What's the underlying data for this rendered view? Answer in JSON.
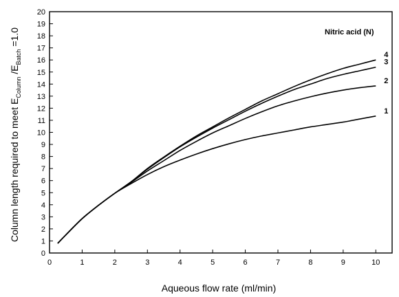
{
  "chart_data": {
    "type": "line",
    "xlabel": "Aqueous flow rate (ml/min)",
    "ylabel": {
      "main": "Column length required to meet E",
      "sub1": "Column",
      "mid": " /E",
      "sub2": "Batch",
      "end": " =1.0"
    },
    "legend_title": "Nitric acid  (N)",
    "xlim": [
      0,
      10.5
    ],
    "ylim": [
      0,
      20
    ],
    "x_ticks": [
      "0",
      "1",
      "2",
      "3",
      "4",
      "5",
      "6",
      "7",
      "8",
      "9",
      "10"
    ],
    "y_ticks": [
      "0",
      "1",
      "2",
      "3",
      "4",
      "5",
      "6",
      "7",
      "8",
      "9",
      "10",
      "11",
      "12",
      "13",
      "14",
      "15",
      "16",
      "17",
      "18",
      "19",
      "20"
    ],
    "grid": false,
    "series": [
      {
        "name": "1",
        "x": [
          0.25,
          0.5,
          1,
          1.5,
          2,
          2.5,
          3,
          3.5,
          4,
          4.5,
          5,
          5.5,
          6,
          6.5,
          7,
          7.5,
          8,
          8.5,
          9,
          9.5,
          10
        ],
        "y": [
          0.8,
          1.5,
          2.85,
          3.95,
          4.95,
          5.75,
          6.5,
          7.15,
          7.7,
          8.2,
          8.65,
          9.05,
          9.4,
          9.7,
          9.95,
          10.2,
          10.45,
          10.65,
          10.85,
          11.1,
          11.35
        ]
      },
      {
        "name": "2",
        "x": [
          0.25,
          0.5,
          1,
          1.5,
          2,
          2.5,
          3,
          3.5,
          4,
          4.5,
          5,
          5.5,
          6,
          6.5,
          7,
          7.5,
          8,
          8.5,
          9,
          9.5,
          10
        ],
        "y": [
          0.8,
          1.5,
          2.85,
          3.95,
          4.95,
          5.85,
          6.8,
          7.65,
          8.5,
          9.25,
          9.95,
          10.55,
          11.15,
          11.7,
          12.2,
          12.6,
          12.95,
          13.25,
          13.5,
          13.7,
          13.85
        ]
      },
      {
        "name": "3",
        "x": [
          0.25,
          0.5,
          1,
          1.5,
          2,
          2.5,
          3,
          3.5,
          4,
          4.5,
          5,
          5.5,
          6,
          6.5,
          7,
          7.5,
          8,
          8.5,
          9,
          9.5,
          10
        ],
        "y": [
          0.8,
          1.5,
          2.85,
          3.95,
          4.95,
          5.9,
          6.95,
          7.9,
          8.8,
          9.6,
          10.35,
          11.05,
          11.75,
          12.4,
          13.0,
          13.55,
          14.0,
          14.45,
          14.8,
          15.1,
          15.4
        ]
      },
      {
        "name": "4",
        "x": [
          0.25,
          0.5,
          1,
          1.5,
          2,
          2.5,
          3,
          3.5,
          4,
          4.5,
          5,
          5.5,
          6,
          6.5,
          7,
          7.5,
          8,
          8.5,
          9,
          9.5,
          10
        ],
        "y": [
          0.8,
          1.5,
          2.85,
          3.95,
          4.95,
          5.9,
          7.0,
          7.95,
          8.85,
          9.7,
          10.45,
          11.2,
          11.9,
          12.6,
          13.2,
          13.8,
          14.35,
          14.85,
          15.3,
          15.65,
          16.0
        ]
      }
    ]
  }
}
